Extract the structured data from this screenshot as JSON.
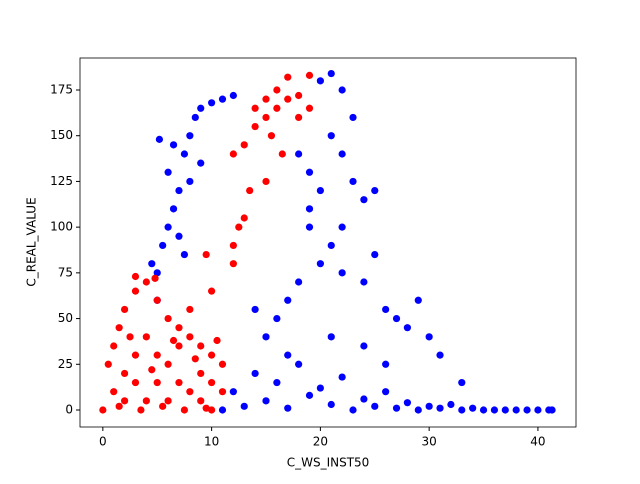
{
  "chart_data": {
    "type": "scatter",
    "x_label": "C_WS_INST50",
    "y_label": "C_REAL_VALUE",
    "xlim": [
      -2.1,
      43.5
    ],
    "ylim": [
      -9.3,
      192.5
    ],
    "xticks": [
      0,
      10,
      20,
      30,
      40
    ],
    "yticks": [
      0,
      25,
      50,
      75,
      100,
      125,
      150,
      175
    ],
    "grid": false,
    "series": [
      {
        "color": "#0000ff",
        "x": [
          11,
          13,
          15,
          17,
          19,
          21,
          23,
          25,
          27,
          29,
          31,
          33,
          35,
          37,
          39,
          41,
          12,
          14,
          16,
          18,
          20,
          22,
          24,
          26,
          28,
          30,
          32,
          34,
          36,
          38,
          40,
          41.3,
          5,
          5.5,
          6,
          6.5,
          7,
          6,
          7.5,
          8,
          8.5,
          9,
          10,
          11,
          12,
          5.2,
          6.5,
          7,
          8,
          9,
          4.5,
          5,
          7.5,
          18,
          19,
          20,
          21,
          22,
          23,
          24,
          25,
          22,
          21,
          19,
          20,
          18,
          17,
          16,
          22,
          24,
          25,
          26,
          27,
          28,
          29,
          30,
          31,
          33,
          20,
          21,
          22,
          19,
          23,
          15,
          14,
          17,
          21,
          24,
          26
        ],
        "values": [
          0,
          2,
          5,
          1,
          8,
          3,
          0,
          2,
          1,
          0,
          1,
          0,
          0,
          0,
          0,
          0,
          10,
          20,
          15,
          25,
          12,
          18,
          6,
          10,
          4,
          2,
          3,
          1,
          0,
          0,
          0,
          0,
          75,
          90,
          100,
          110,
          120,
          130,
          140,
          150,
          160,
          165,
          168,
          170,
          172,
          148,
          145,
          95,
          125,
          135,
          80,
          60,
          85,
          140,
          130,
          120,
          150,
          140,
          125,
          115,
          120,
          100,
          90,
          100,
          80,
          70,
          60,
          50,
          75,
          70,
          85,
          55,
          50,
          45,
          60,
          40,
          30,
          15,
          180,
          184,
          175,
          110,
          160,
          40,
          55,
          30,
          40,
          35,
          25
        ]
      },
      {
        "color": "#ff0000",
        "x": [
          0,
          1,
          2,
          3,
          4,
          5,
          6,
          7,
          8,
          9,
          10,
          1,
          2,
          3,
          4,
          5,
          6,
          7,
          8,
          9,
          10,
          11,
          0.5,
          1.5,
          2,
          3,
          4,
          5,
          6,
          7,
          8,
          9,
          10,
          11,
          1.5,
          3.5,
          5.5,
          7.5,
          9.5,
          2.5,
          4.5,
          6.5,
          8.5,
          10.5,
          3,
          4.8,
          12,
          12.5,
          13,
          13.5,
          12,
          10,
          9.5,
          14,
          15,
          16,
          17,
          18,
          15,
          16,
          17,
          19,
          18,
          14,
          15.5,
          13,
          16.5,
          19,
          15,
          12
        ],
        "values": [
          0,
          10,
          20,
          30,
          5,
          15,
          25,
          35,
          10,
          20,
          30,
          35,
          5,
          15,
          40,
          30,
          5,
          15,
          40,
          5,
          15,
          25,
          25,
          45,
          55,
          65,
          70,
          60,
          50,
          45,
          55,
          35,
          0,
          10,
          2,
          0,
          2,
          0,
          1,
          40,
          22,
          38,
          28,
          38,
          73,
          72,
          80,
          100,
          105,
          120,
          90,
          65,
          85,
          155,
          160,
          165,
          170,
          172,
          170,
          175,
          182,
          183,
          160,
          165,
          150,
          145,
          140,
          165,
          125,
          140
        ]
      }
    ]
  }
}
